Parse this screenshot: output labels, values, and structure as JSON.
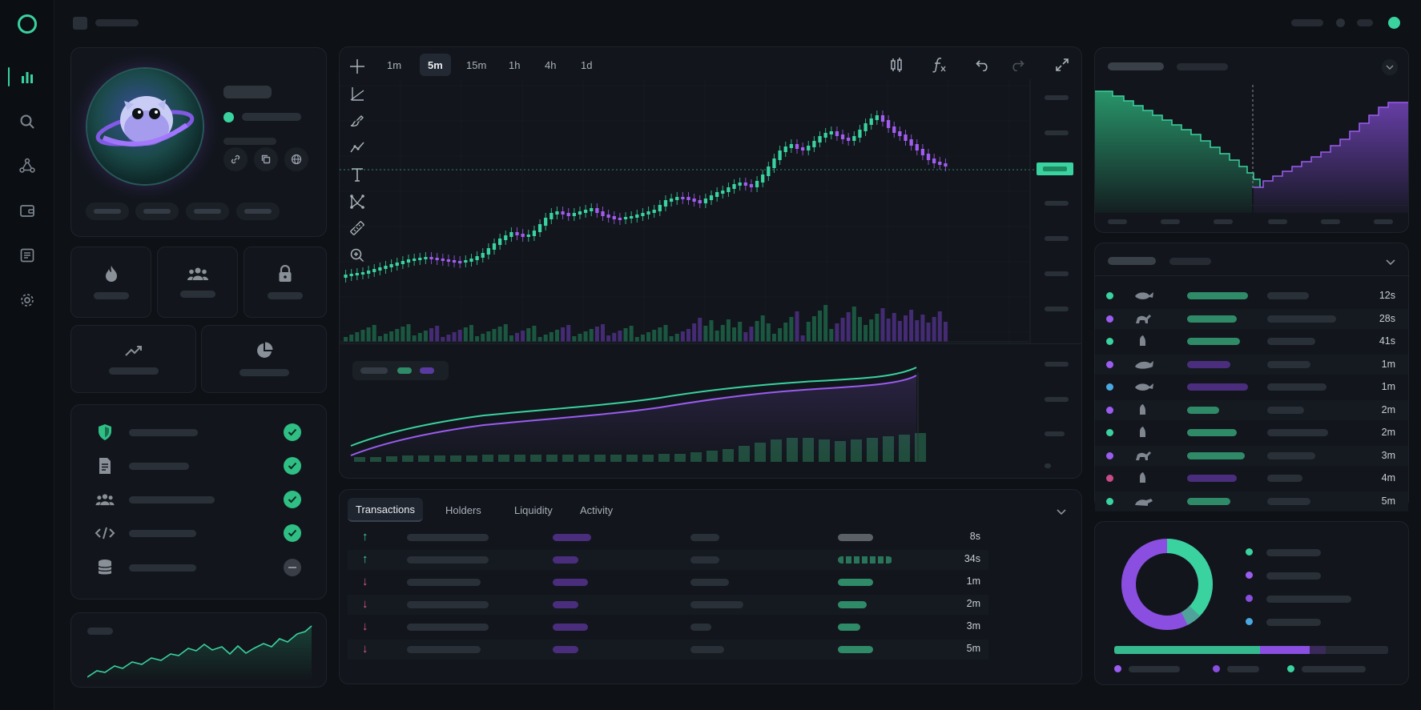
{
  "chart": {
    "timeframes": [
      "1m",
      "5m",
      "15m",
      "1h",
      "4h",
      "1d"
    ],
    "active_timeframe": "5m"
  },
  "tabs": {
    "items": [
      "Transactions",
      "Holders",
      "Liquidity",
      "Activity"
    ],
    "active": "Transactions"
  },
  "transactions": {
    "rows": [
      {
        "direction": "buy",
        "arrow": "↑",
        "time": "8s"
      },
      {
        "direction": "buy",
        "arrow": "↑",
        "time": "34s"
      },
      {
        "direction": "sell",
        "arrow": "↓",
        "time": "1m"
      },
      {
        "direction": "sell",
        "arrow": "↓",
        "time": "2m"
      },
      {
        "direction": "sell",
        "arrow": "↓",
        "time": "3m"
      },
      {
        "direction": "sell",
        "arrow": "↓",
        "time": "5m"
      }
    ]
  },
  "whales": {
    "rows": [
      {
        "dot": "#3ad29f",
        "time": "12s"
      },
      {
        "dot": "#9b5cf0",
        "time": "28s"
      },
      {
        "dot": "#3ad29f",
        "time": "41s"
      },
      {
        "dot": "#9b5cf0",
        "time": "1m"
      },
      {
        "dot": "#4aa8e0",
        "time": "1m"
      },
      {
        "dot": "#9b5cf0",
        "time": "2m"
      },
      {
        "dot": "#3ad29f",
        "time": "2m"
      },
      {
        "dot": "#9b5cf0",
        "time": "3m"
      },
      {
        "dot": "#c94c8a",
        "time": "4m"
      },
      {
        "dot": "#3ad29f",
        "time": "5m"
      }
    ]
  },
  "colors": {
    "accent_green": "#3ad29f",
    "accent_purple": "#9b5cf0",
    "sell_pink": "#e05a8a",
    "background": "#0e1116"
  },
  "icons": {
    "rail": [
      "bar-chart-icon",
      "search-icon",
      "network-icon",
      "wallet-icon",
      "list-icon",
      "gear-icon"
    ],
    "tools": [
      "crosshair-icon",
      "trendline-icon",
      "brush-icon",
      "path-icon",
      "text-icon",
      "pattern-icon",
      "ruler-icon",
      "zoom-icon"
    ],
    "stats": [
      "flame-icon",
      "people-icon",
      "lock-icon",
      "trend-icon",
      "pie-icon"
    ],
    "checks": [
      "shield-icon",
      "document-icon",
      "people-icon",
      "code-icon",
      "database-icon"
    ]
  }
}
